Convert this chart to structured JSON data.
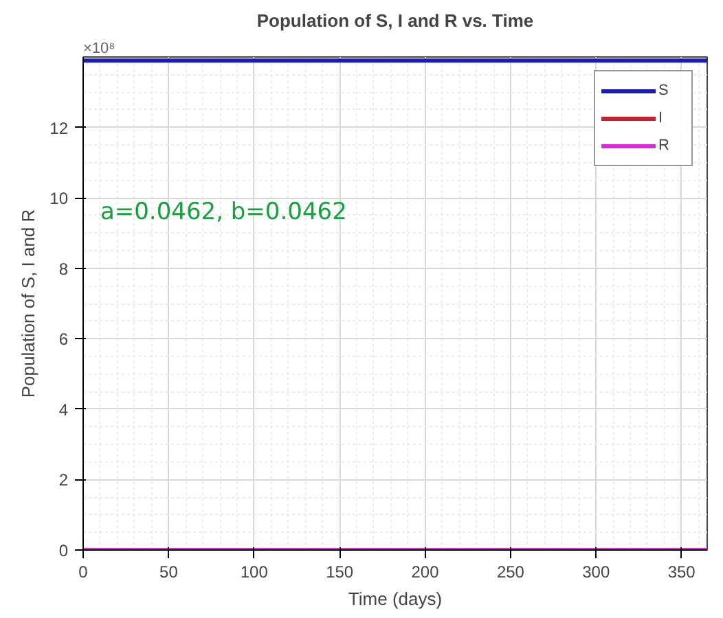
{
  "chart_data": {
    "type": "line",
    "title": "Population of S, I and R vs. Time",
    "xlabel": "Time (days)",
    "ylabel": "Population of S, I and R",
    "annotations": [
      "×10⁸",
      "a=0.0462, b=0.0462"
    ],
    "x": [
      0,
      365
    ],
    "series": [
      {
        "name": "S",
        "color": "#1c1cb4",
        "values": [
          13.9,
          13.9
        ]
      },
      {
        "name": "I",
        "color": "#c8202c",
        "values": [
          null,
          null
        ]
      },
      {
        "name": "R",
        "color": "#e028e0",
        "values": [
          0,
          0
        ]
      }
    ],
    "xlim": [
      0,
      365
    ],
    "ylim": [
      0,
      14
    ],
    "xticks": [
      0,
      50,
      100,
      150,
      200,
      250,
      300,
      350
    ],
    "yticks": [
      0,
      2,
      4,
      6,
      8,
      10,
      12
    ],
    "grid": true,
    "legend": "top right",
    "line_style": "solid",
    "marker": "none"
  }
}
